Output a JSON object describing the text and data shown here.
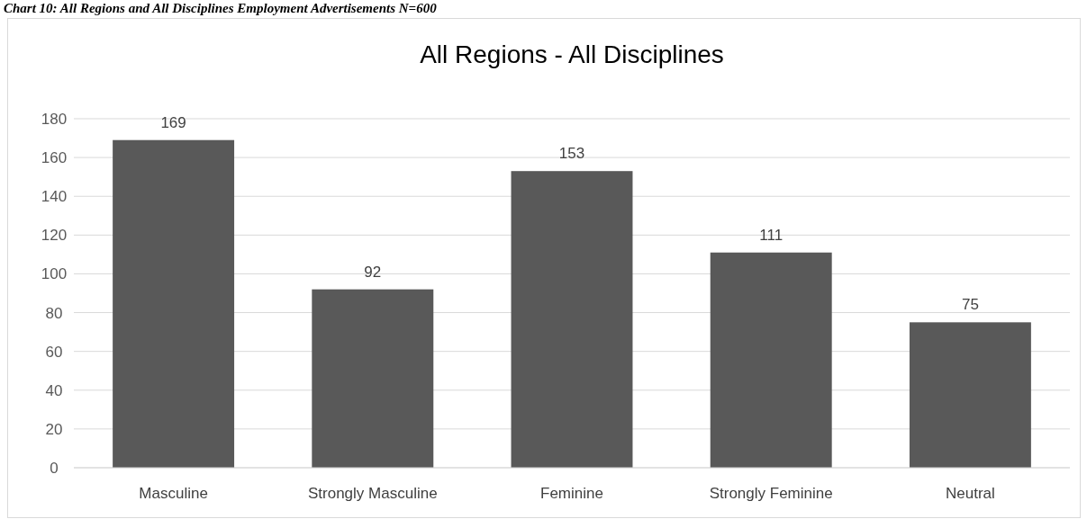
{
  "chart_data": {
    "type": "bar",
    "title": "All Regions - All Disciplines",
    "annotations": [
      "Chart 10: All Regions and All Disciplines Employment Advertisements N=600"
    ],
    "categories": [
      "Masculine",
      "Strongly Masculine",
      "Feminine",
      "Strongly Feminine",
      "Neutral"
    ],
    "values": [
      169,
      92,
      153,
      111,
      75
    ],
    "color": "#595959",
    "ylim": [
      0,
      180
    ],
    "yticks": [
      0,
      20,
      40,
      60,
      80,
      100,
      120,
      140,
      160,
      180
    ],
    "grid": "y",
    "data_labels": true
  }
}
